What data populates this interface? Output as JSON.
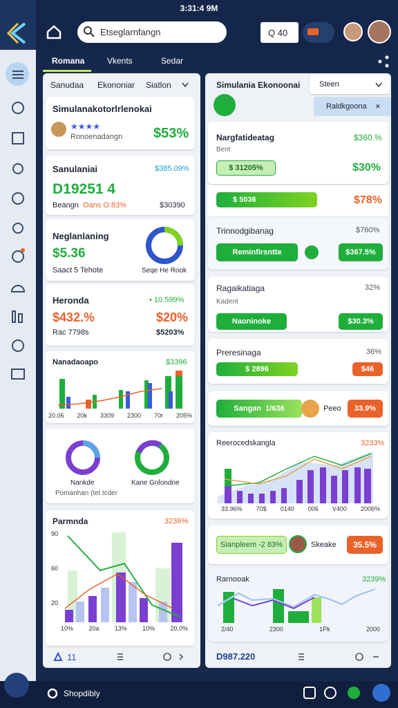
{
  "topbar": {
    "time": "3:31:4 9M",
    "search": "Etseglarnfangn",
    "counter": "Q 40"
  },
  "tabs": [
    "Romana",
    "Vkents",
    "Sedar"
  ],
  "left": {
    "subtabs": [
      "Sanudaa",
      "Ekononiar",
      "Siatlon"
    ],
    "card1": {
      "title": "Simulanakotorlrlenokai",
      "stars": "★★★★",
      "sub": "Ronoenadangn",
      "value": "$53%"
    },
    "card2": {
      "title": "Sanulaniai",
      "pct": "$385.09%",
      "big": "D19251 4",
      "a": "Beangn",
      "b": "Oans O:83%",
      "c": "$30390"
    },
    "card3": {
      "title": "Neglanlaning",
      "value": "$5.36",
      "sub": "Saact 5 Tehote",
      "donut": "Seqe He Rook"
    },
    "card4": {
      "title": "Heronda",
      "pct": "• 10.599%",
      "a": "$432.%",
      "b": "$20%",
      "c": "Rac 7798s",
      "d": "$5203%"
    },
    "chart1": {
      "title": "Nanadaoapo",
      "pct": "$3396",
      "x": [
        "20.06",
        "20k",
        "3309",
        "2300",
        "70r",
        "205%"
      ]
    },
    "donuts": {
      "a": "Nankde",
      "b": "Kane Gnlondne",
      "sub": "Pomanhan (tel tcder"
    },
    "chart2": {
      "title": "Parmnda",
      "pct": "3236%",
      "y": [
        "90",
        "60",
        "20"
      ],
      "x": [
        "10%",
        "20a",
        "13%",
        "10%",
        "20.0%"
      ]
    },
    "footer": "11"
  },
  "right": {
    "title": "Simulania Ekonoonai",
    "dropdown": "Steen",
    "pill": "Raldkgoona",
    "cardA": {
      "title": "Nargfatideatag",
      "sub": "Bent",
      "pct": "$360.%",
      "chip": "$ 31205%",
      "value": "$30%"
    },
    "progress": {
      "label": "$ 5036",
      "value": "$78%"
    },
    "cardB": {
      "title": "Trinnodgibanag",
      "pct": "$760%",
      "btn": "Reminfirsntte",
      "badge": "$367.5%"
    },
    "cardC": {
      "title": "Ragaikatiaga",
      "pct": "32%",
      "sub": "Kadent",
      "btn": "Naoninoke",
      "badge": "$30.3%"
    },
    "cardD": {
      "title": "Preresinaga",
      "pct": "36%",
      "btn": "$ 2896",
      "badge": "$46"
    },
    "rowE": {
      "btn": "Sangan",
      "mid": "1/636",
      "name": "Peeo",
      "badge": "33.9%"
    },
    "chart3": {
      "title": "Reerocedskangla",
      "pct": "3233%",
      "x": [
        "33.96%",
        "70$",
        "0140",
        "006",
        "V400",
        "2006%"
      ]
    },
    "rowG": {
      "btn": "Sianpleem -2 83%",
      "name": "Skeake",
      "badge": "35.5%"
    },
    "chart4": {
      "title": "Rarnooak",
      "pct": "3239%",
      "x": [
        "2/40",
        "2300",
        "1Pk",
        "2000"
      ]
    },
    "footer": "D987.220"
  },
  "bottombar": "Shopdibly"
}
